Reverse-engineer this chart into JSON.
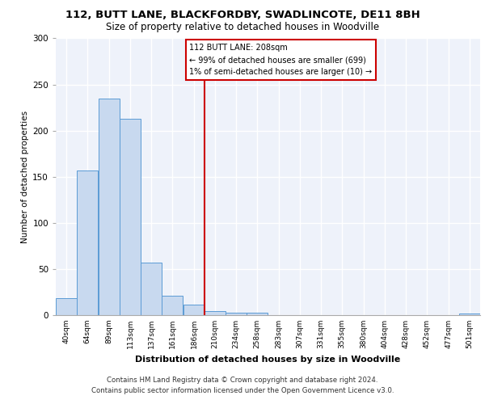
{
  "title": "112, BUTT LANE, BLACKFORDBY, SWADLINCOTE, DE11 8BH",
  "subtitle": "Size of property relative to detached houses in Woodville",
  "xlabel": "Distribution of detached houses by size in Woodville",
  "ylabel": "Number of detached properties",
  "bar_color": "#c8d9ef",
  "bar_edge_color": "#5b9bd5",
  "vline_x": 210,
  "vline_color": "#cc0000",
  "annotation_lines": [
    "112 BUTT LANE: 208sqm",
    "← 99% of detached houses are smaller (699)",
    "1% of semi-detached houses are larger (10) →"
  ],
  "bin_edges": [
    40,
    64,
    89,
    113,
    137,
    161,
    186,
    210,
    234,
    258,
    283,
    307,
    331,
    355,
    380,
    404,
    428,
    452,
    477,
    501,
    525
  ],
  "bar_heights": [
    18,
    157,
    235,
    213,
    57,
    21,
    11,
    4,
    3,
    3,
    0,
    0,
    0,
    0,
    0,
    0,
    0,
    0,
    0,
    2
  ],
  "ylim": [
    0,
    300
  ],
  "yticks": [
    0,
    50,
    100,
    150,
    200,
    250,
    300
  ],
  "bg_color": "#eef2fa",
  "grid_color": "#ffffff",
  "footer_line1": "Contains HM Land Registry data © Crown copyright and database right 2024.",
  "footer_line2": "Contains public sector information licensed under the Open Government Licence v3.0."
}
